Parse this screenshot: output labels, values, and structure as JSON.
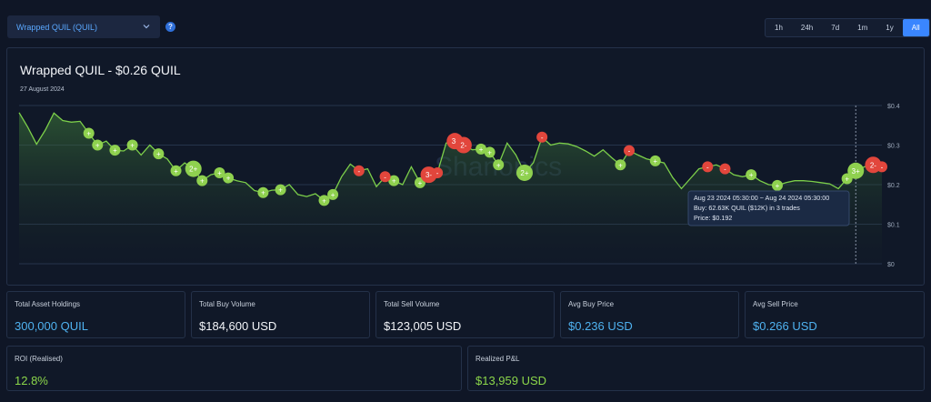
{
  "token_select": {
    "label": "Wrapped QUIL (QUIL)"
  },
  "help": {
    "glyph": "?"
  },
  "time_ranges": [
    {
      "label": "1h"
    },
    {
      "label": "24h"
    },
    {
      "label": "7d"
    },
    {
      "label": "1m"
    },
    {
      "label": "1y"
    },
    {
      "label": "All",
      "active": true
    }
  ],
  "panel": {
    "title": "Wrapped QUIL - $0.26 QUIL",
    "date": "27 August 2024"
  },
  "chart_data": {
    "type": "line",
    "watermark": "Shanonics",
    "y_ticks": [
      "$0.4",
      "$0.3",
      "$0.2",
      "$0.1",
      "$0"
    ],
    "ylim": [
      0,
      0.4
    ],
    "grid": true,
    "x": [
      0,
      1,
      2,
      3,
      4,
      5,
      6,
      7,
      8,
      9,
      10,
      11,
      12,
      13,
      14,
      15,
      16,
      17,
      18,
      19,
      20,
      21,
      22,
      23,
      24,
      25,
      26,
      27,
      28,
      29,
      30,
      31,
      32,
      33,
      34,
      35,
      36,
      37,
      38,
      39,
      40,
      41,
      42,
      43,
      44,
      45,
      46,
      47,
      48,
      49,
      50,
      51,
      52,
      53,
      54,
      55,
      56,
      57,
      58,
      59,
      60,
      61,
      62,
      63,
      64,
      65,
      66,
      67,
      68,
      69,
      70,
      71,
      72,
      73,
      74,
      75,
      76,
      77,
      78,
      79,
      80,
      81,
      82,
      83,
      84,
      85,
      86,
      87,
      88,
      89,
      90,
      91,
      92,
      93,
      94,
      95,
      96,
      97,
      98,
      99
    ],
    "values": [
      0.382,
      0.345,
      0.302,
      0.338,
      0.381,
      0.362,
      0.358,
      0.36,
      0.33,
      0.3,
      0.31,
      0.287,
      0.285,
      0.3,
      0.275,
      0.3,
      0.278,
      0.265,
      0.235,
      0.255,
      0.24,
      0.21,
      0.225,
      0.23,
      0.217,
      0.21,
      0.205,
      0.185,
      0.18,
      0.186,
      0.187,
      0.2,
      0.175,
      0.17,
      0.177,
      0.16,
      0.175,
      0.22,
      0.252,
      0.235,
      0.24,
      0.195,
      0.22,
      0.21,
      0.2,
      0.245,
      0.205,
      0.225,
      0.23,
      0.305,
      0.31,
      0.3,
      0.288,
      0.29,
      0.282,
      0.25,
      0.305,
      0.275,
      0.23,
      0.255,
      0.32,
      0.3,
      0.305,
      0.303,
      0.296,
      0.285,
      0.272,
      0.288,
      0.268,
      0.25,
      0.286,
      0.275,
      0.265,
      0.26,
      0.255,
      0.218,
      0.19,
      0.215,
      0.24,
      0.245,
      0.25,
      0.24,
      0.225,
      0.22,
      0.225,
      0.21,
      0.2,
      0.198,
      0.205,
      0.21,
      0.21,
      0.208,
      0.205,
      0.202,
      0.19,
      0.215,
      0.235,
      0.245,
      0.25,
      0.245
    ],
    "buys": [
      {
        "i": 8,
        "label": "+"
      },
      {
        "i": 9,
        "label": "+"
      },
      {
        "i": 11,
        "label": "+"
      },
      {
        "i": 13,
        "label": "+"
      },
      {
        "i": 16,
        "label": "+"
      },
      {
        "i": 18,
        "label": "+"
      },
      {
        "i": 20,
        "label": "2+"
      },
      {
        "i": 21,
        "label": "+"
      },
      {
        "i": 23,
        "label": "+"
      },
      {
        "i": 24,
        "label": "+"
      },
      {
        "i": 28,
        "label": "+"
      },
      {
        "i": 30,
        "label": "+"
      },
      {
        "i": 35,
        "label": "+"
      },
      {
        "i": 36,
        "label": "+"
      },
      {
        "i": 43,
        "label": "+"
      },
      {
        "i": 46,
        "label": "+"
      },
      {
        "i": 47,
        "label": "+"
      },
      {
        "i": 53,
        "label": "+"
      },
      {
        "i": 54,
        "label": "+"
      },
      {
        "i": 55,
        "label": "+"
      },
      {
        "i": 58,
        "label": "2+"
      },
      {
        "i": 69,
        "label": "+"
      },
      {
        "i": 73,
        "label": "+"
      },
      {
        "i": 84,
        "label": "+"
      },
      {
        "i": 87,
        "label": "+"
      },
      {
        "i": 95,
        "label": "+"
      },
      {
        "i": 96,
        "label": "3+"
      }
    ],
    "sells": [
      {
        "i": 39,
        "label": "-"
      },
      {
        "i": 42,
        "label": "-"
      },
      {
        "i": 47,
        "label": "3-"
      },
      {
        "i": 48,
        "label": "-"
      },
      {
        "i": 50,
        "label": "3-"
      },
      {
        "i": 51,
        "label": "2-"
      },
      {
        "i": 60,
        "label": "-"
      },
      {
        "i": 70,
        "label": "-"
      },
      {
        "i": 79,
        "label": "-"
      },
      {
        "i": 81,
        "label": "-"
      },
      {
        "i": 98,
        "label": "2-"
      },
      {
        "i": 99,
        "label": "-"
      }
    ],
    "crosshair_index": 96,
    "tooltip": {
      "line1": "Aug 23 2024 05:30:00 ~ Aug 24 2024 05:30:00",
      "line2": "Buy: 62.63K QUIL ($12K) in 3 trades",
      "line3": "Price: $0.192"
    }
  },
  "cards": [
    {
      "label": "Total Asset Holdings",
      "value": "300,000 QUIL",
      "tone": "blue"
    },
    {
      "label": "Total Buy Volume",
      "value": "$184,600 USD",
      "tone": "white"
    },
    {
      "label": "Total Sell Volume",
      "value": "$123,005 USD",
      "tone": "white"
    },
    {
      "label": "Avg Buy Price",
      "value": "$0.236 USD",
      "tone": "blue"
    },
    {
      "label": "Avg Sell Price",
      "value": "$0.266 USD",
      "tone": "blue"
    },
    {
      "label": "ROI (Realised)",
      "value": "12.8%",
      "tone": "green"
    },
    {
      "label": "Realized P&L",
      "value": "$13,959 USD",
      "tone": "green"
    }
  ],
  "colors": {
    "line": "#7ccf4a",
    "buy": "#8fd14f",
    "sell": "#e2463c",
    "bg": "#0f1626",
    "accent": "#3a86ff"
  }
}
